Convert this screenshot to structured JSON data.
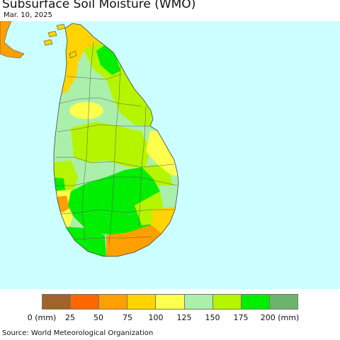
{
  "title": "Subsurface Soil Moisture (WMO)",
  "date": "Mar. 10, 2025",
  "source": "Source: World Meteorological Organization",
  "colors": {
    "ocean": "#ccffff",
    "border": "#555555"
  },
  "legend": {
    "colors": [
      "#a0632c",
      "#ff6600",
      "#ff9f00",
      "#ffd400",
      "#ffff4d",
      "#aaf0aa",
      "#b5f500",
      "#00ee00",
      "#6cb46c"
    ],
    "labels": [
      "0 (mm)",
      "25",
      "50",
      "75",
      "100",
      "125",
      "150",
      "175",
      "200 (mm)"
    ]
  }
}
